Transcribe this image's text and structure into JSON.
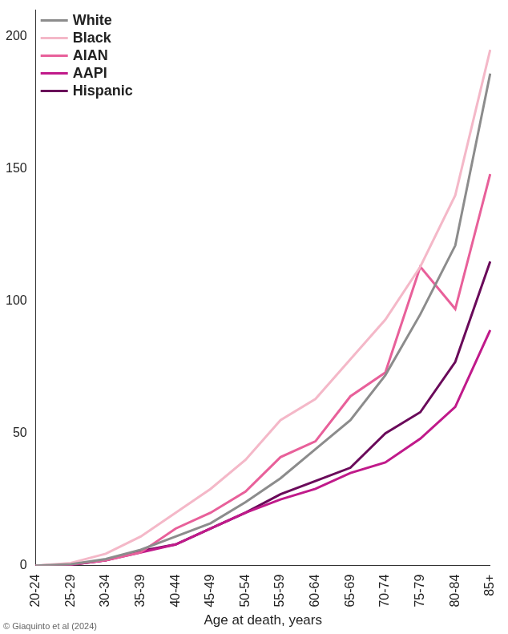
{
  "chart_data": {
    "type": "line",
    "x_label": "Age at death, years",
    "annotations": [
      "© Giaquinto et al (2024)"
    ],
    "categories": [
      "20-24",
      "25-29",
      "30-34",
      "35-39",
      "40-44",
      "45-49",
      "50-54",
      "55-59",
      "60-64",
      "65-69",
      "70-74",
      "75-79",
      "80-84",
      "85+"
    ],
    "series": [
      {
        "name": "White",
        "color": "#8c8c8c",
        "values": [
          0,
          0.5,
          2.5,
          6,
          11,
          16,
          24,
          33,
          44,
          55,
          72,
          95,
          121,
          186
        ]
      },
      {
        "name": "Black",
        "color": "#f4b8c8",
        "values": [
          0,
          1,
          4.5,
          11,
          20,
          29,
          40,
          55,
          63,
          78,
          93,
          113,
          140,
          195
        ]
      },
      {
        "name": "AIAN",
        "color": "#e8609a",
        "values": [
          0,
          0.5,
          2,
          5,
          14,
          20,
          28,
          41,
          47,
          64,
          73,
          113,
          97,
          148
        ]
      },
      {
        "name": "AAPI",
        "color": "#c01a8a",
        "values": [
          0,
          0.3,
          2,
          5,
          8,
          14,
          20,
          25,
          29,
          35,
          39,
          48,
          60,
          89
        ]
      },
      {
        "name": "Hispanic",
        "color": "#6a0a5a",
        "values": [
          0,
          0.3,
          2,
          5.5,
          8,
          14,
          20,
          27,
          32,
          37,
          50,
          58,
          77,
          115
        ]
      }
    ],
    "ylim": [
      0,
      210
    ],
    "yticks": [
      0,
      50,
      100,
      150,
      200
    ],
    "grid": false,
    "legend": "upper left"
  }
}
